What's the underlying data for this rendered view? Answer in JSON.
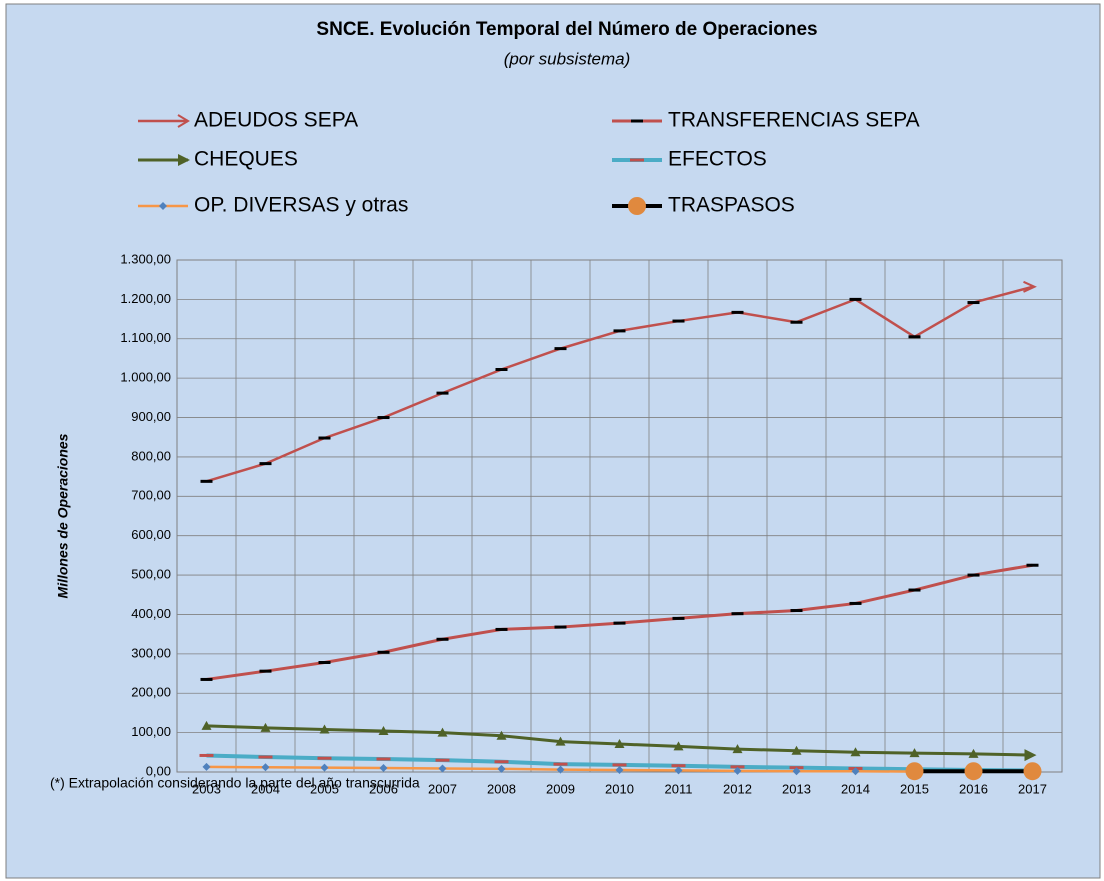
{
  "chart_data": {
    "type": "line",
    "title": "SNCE. Evolución Temporal del Número de Operaciones",
    "subtitle": "(por subsistema)",
    "y_label": "Millones de Operaciones",
    "note": "(*) Extrapolación considerando la parte del año transcurrida",
    "categories": [
      "2003",
      "2004",
      "2005",
      "2006",
      "2007",
      "2008",
      "2009",
      "2010",
      "2011",
      "2012",
      "2013",
      "2014",
      "2015",
      "2016",
      "2017"
    ],
    "ylim": [
      0,
      1300
    ],
    "yticks": [
      {
        "value": 0,
        "label": "0,00"
      },
      {
        "value": 100,
        "label": "100,00"
      },
      {
        "value": 200,
        "label": "200,00"
      },
      {
        "value": 300,
        "label": "300,00"
      },
      {
        "value": 400,
        "label": "400,00"
      },
      {
        "value": 500,
        "label": "500,00"
      },
      {
        "value": 600,
        "label": "600,00"
      },
      {
        "value": 700,
        "label": "700,00"
      },
      {
        "value": 800,
        "label": "800,00"
      },
      {
        "value": 900,
        "label": "900,00"
      },
      {
        "value": 1000,
        "label": "1.000,00"
      },
      {
        "value": 1100,
        "label": "1.100,00"
      },
      {
        "value": 1200,
        "label": "1.200,00"
      },
      {
        "value": 1300,
        "label": "1.300,00"
      }
    ],
    "grid": true,
    "series": [
      {
        "name": "ADEUDOS SEPA",
        "color": "#c0504d",
        "width": 2.5,
        "marker": "arrow",
        "values": [
          738,
          783,
          848,
          900,
          962,
          1022,
          1075,
          1120,
          1145,
          1167,
          1142,
          1200,
          1105,
          1192,
          1232
        ]
      },
      {
        "name": "TRANSFERENCIAS SEPA",
        "color": "#c0504d",
        "width": 3,
        "marker": "dash",
        "values": [
          235,
          256,
          278,
          304,
          337,
          362,
          368,
          378,
          390,
          402,
          410,
          428,
          462,
          500,
          525
        ]
      },
      {
        "name": "CHEQUES",
        "color": "#4f6228",
        "width": 3,
        "marker": "triangle",
        "values": [
          117,
          112,
          108,
          104,
          100,
          92,
          77,
          71,
          65,
          58,
          54,
          50,
          48,
          46,
          43
        ]
      },
      {
        "name": "EFECTOS",
        "color": "#4bacc6",
        "width": 4,
        "marker": "orangedash",
        "values": [
          42,
          38,
          35,
          33,
          30,
          26,
          20,
          18,
          16,
          13,
          11,
          9,
          7,
          5,
          4
        ]
      },
      {
        "name": "OP. DIVERSAS y otras",
        "color": "#f79646",
        "width": 2.5,
        "marker": "diamond",
        "values": [
          13,
          12,
          11,
          10,
          9,
          8,
          6,
          5,
          4,
          3,
          2,
          2,
          1,
          1,
          1
        ]
      },
      {
        "name": "TRASPASOS",
        "color": "#000000",
        "width": 4,
        "marker": "circle",
        "values": [
          null,
          null,
          null,
          null,
          null,
          null,
          null,
          null,
          null,
          null,
          null,
          null,
          2,
          2,
          2
        ]
      }
    ]
  }
}
